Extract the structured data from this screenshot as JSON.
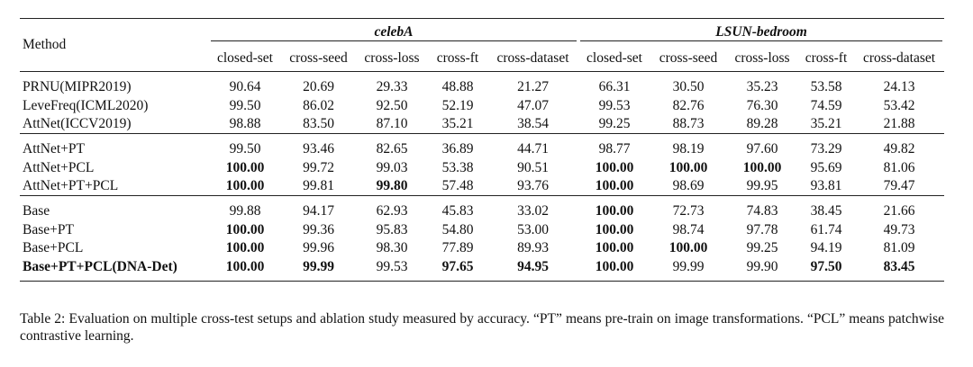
{
  "table": {
    "method_header": "Method",
    "datasets": [
      "celebA",
      "LSUN-bedroom"
    ],
    "subcolumns": [
      "closed-set",
      "cross-seed",
      "cross-loss",
      "cross-ft",
      "cross-dataset",
      "closed-set",
      "cross-seed",
      "cross-loss",
      "cross-ft",
      "cross-dataset"
    ],
    "groups": [
      [
        {
          "method": "PRNU(MIPR2019)",
          "values": [
            "90.64",
            "20.69",
            "29.33",
            "48.88",
            "21.27",
            "66.31",
            "30.50",
            "35.23",
            "53.58",
            "24.13"
          ],
          "bold": []
        },
        {
          "method": "LeveFreq(ICML2020)",
          "values": [
            "99.50",
            "86.02",
            "92.50",
            "52.19",
            "47.07",
            "99.53",
            "82.76",
            "76.30",
            "74.59",
            "53.42"
          ],
          "bold": []
        },
        {
          "method": "AttNet(ICCV2019)",
          "values": [
            "98.88",
            "83.50",
            "87.10",
            "35.21",
            "38.54",
            "99.25",
            "88.73",
            "89.28",
            "35.21",
            "21.88"
          ],
          "bold": []
        }
      ],
      [
        {
          "method": "AttNet+PT",
          "values": [
            "99.50",
            "93.46",
            "82.65",
            "36.89",
            "44.71",
            "98.77",
            "98.19",
            "97.60",
            "73.29",
            "49.82"
          ],
          "bold": []
        },
        {
          "method": "AttNet+PCL",
          "values": [
            "100.00",
            "99.72",
            "99.03",
            "53.38",
            "90.51",
            "100.00",
            "100.00",
            "100.00",
            "95.69",
            "81.06"
          ],
          "bold": [
            0,
            5,
            6,
            7
          ]
        },
        {
          "method": "AttNet+PT+PCL",
          "values": [
            "100.00",
            "99.81",
            "99.80",
            "57.48",
            "93.76",
            "100.00",
            "98.69",
            "99.95",
            "93.81",
            "79.47"
          ],
          "bold": [
            0,
            2,
            5
          ]
        }
      ],
      [
        {
          "method": "Base",
          "values": [
            "99.88",
            "94.17",
            "62.93",
            "45.83",
            "33.02",
            "100.00",
            "72.73",
            "74.83",
            "38.45",
            "21.66"
          ],
          "bold": [
            5
          ]
        },
        {
          "method": "Base+PT",
          "values": [
            "100.00",
            "99.36",
            "95.83",
            "54.80",
            "53.00",
            "100.00",
            "98.74",
            "97.78",
            "61.74",
            "49.73"
          ],
          "bold": [
            0,
            5
          ]
        },
        {
          "method": "Base+PCL",
          "values": [
            "100.00",
            "99.96",
            "98.30",
            "77.89",
            "89.93",
            "100.00",
            "100.00",
            "99.25",
            "94.19",
            "81.09"
          ],
          "bold": [
            0,
            5,
            6
          ]
        },
        {
          "method": "Base+PT+PCL(DNA-Det)",
          "values": [
            "100.00",
            "99.99",
            "99.53",
            "97.65",
            "94.95",
            "100.00",
            "99.99",
            "99.90",
            "97.50",
            "83.45"
          ],
          "bold": [
            0,
            1,
            3,
            4,
            5,
            8,
            9
          ],
          "method_bold": true
        }
      ]
    ]
  },
  "caption": "Table 2: Evaluation on multiple cross-test setups and ablation study measured by accuracy. “PT” means pre-train on image transformations. “PCL” means patchwise contrastive learning."
}
